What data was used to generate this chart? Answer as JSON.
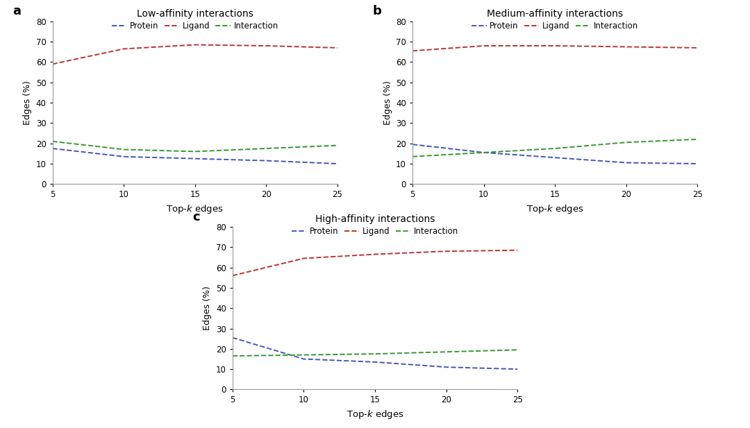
{
  "x": [
    5,
    10,
    15,
    20,
    25
  ],
  "panels": [
    {
      "label": "a",
      "title": "Low-affinity interactions",
      "protein": [
        17.5,
        13.5,
        12.5,
        11.5,
        10.0
      ],
      "ligand": [
        59.0,
        66.5,
        68.5,
        68.0,
        67.0
      ],
      "interaction": [
        21.0,
        17.0,
        16.0,
        17.5,
        19.0
      ]
    },
    {
      "label": "b",
      "title": "Medium-affinity interactions",
      "protein": [
        19.5,
        15.5,
        13.0,
        10.5,
        10.0
      ],
      "ligand": [
        65.5,
        68.0,
        68.0,
        67.5,
        67.0
      ],
      "interaction": [
        13.5,
        15.5,
        17.5,
        20.5,
        22.0
      ]
    },
    {
      "label": "c",
      "title": "High-affinity interactions",
      "protein": [
        25.5,
        15.0,
        13.5,
        11.0,
        10.0
      ],
      "ligand": [
        56.0,
        64.5,
        66.5,
        68.0,
        68.5
      ],
      "interaction": [
        16.5,
        17.0,
        17.5,
        18.5,
        19.5
      ]
    }
  ],
  "protein_color": "#4455bb",
  "ligand_color": "#bb3333",
  "interaction_color": "#339933",
  "ylabel": "Edges (%)",
  "ylim": [
    0,
    80
  ],
  "yticks": [
    0,
    10,
    20,
    30,
    40,
    50,
    60,
    70,
    80
  ],
  "xticks": [
    5,
    10,
    15,
    20,
    25
  ],
  "bg_color": "#ffffff",
  "spine_color": "#999999"
}
